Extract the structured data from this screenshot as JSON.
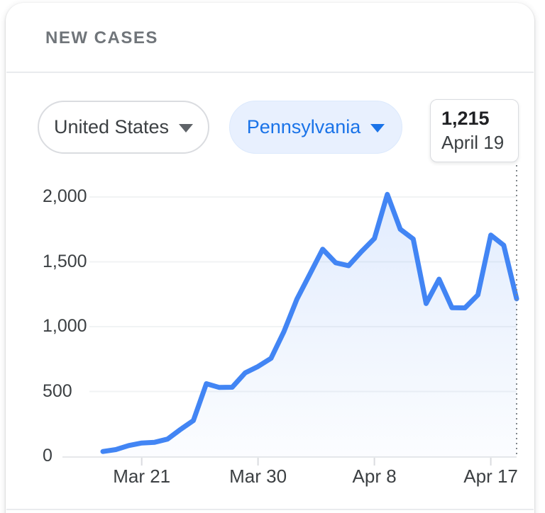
{
  "card": {
    "title": "NEW CASES"
  },
  "filters": {
    "country": {
      "label": "United States",
      "selected": false
    },
    "region": {
      "label": "Pennsylvania",
      "selected": true
    }
  },
  "tooltip": {
    "value": "1,215",
    "date": "April 19"
  },
  "colors": {
    "line": "#4285f4",
    "area_top": "rgba(66,133,244,0.16)",
    "area_bottom": "rgba(66,133,244,0.02)",
    "gridline": "#f1f3f4",
    "axis": "#e6e8ea",
    "tick": "#dadce0",
    "axis_text": "#3c4043",
    "title_text": "#70757a",
    "selected_pill_bg": "#e8f0fe",
    "selected_pill_text": "#1a73e8",
    "marker_line": "#80868b"
  },
  "chart_data": {
    "type": "line",
    "title": "NEW CASES",
    "series_name": "New cases per day",
    "x": [
      "Mar 18",
      "Mar 19",
      "Mar 20",
      "Mar 21",
      "Mar 22",
      "Mar 23",
      "Mar 24",
      "Mar 25",
      "Mar 26",
      "Mar 27",
      "Mar 28",
      "Mar 29",
      "Mar 30",
      "Mar 31",
      "Apr 1",
      "Apr 2",
      "Apr 3",
      "Apr 4",
      "Apr 5",
      "Apr 6",
      "Apr 7",
      "Apr 8",
      "Apr 9",
      "Apr 10",
      "Apr 11",
      "Apr 12",
      "Apr 13",
      "Apr 14",
      "Apr 15",
      "Apr 16",
      "Apr 17",
      "Apr 18",
      "Apr 19"
    ],
    "values": [
      37,
      52,
      83,
      103,
      108,
      133,
      207,
      276,
      560,
      531,
      533,
      643,
      693,
      756,
      962,
      1211,
      1404,
      1597,
      1493,
      1470,
      1579,
      1680,
      2020,
      1751,
      1676,
      1178,
      1366,
      1146,
      1145,
      1245,
      1706,
      1628,
      1215
    ],
    "ylim": [
      0,
      2000
    ],
    "grid": true,
    "y_ticks": [
      {
        "value": 0,
        "label": "0"
      },
      {
        "value": 500,
        "label": "500"
      },
      {
        "value": 1000,
        "label": "1,000"
      },
      {
        "value": 1500,
        "label": "1,500"
      },
      {
        "value": 2000,
        "label": "2,000"
      }
    ],
    "x_ticks": [
      {
        "index": 3,
        "label": "Mar 21"
      },
      {
        "index": 12,
        "label": "Mar 30"
      },
      {
        "index": 21,
        "label": "Apr 8"
      },
      {
        "index": 30,
        "label": "Apr 17"
      }
    ],
    "highlight": {
      "index": 32,
      "value_label": "1,215",
      "date_label": "April 19"
    }
  }
}
